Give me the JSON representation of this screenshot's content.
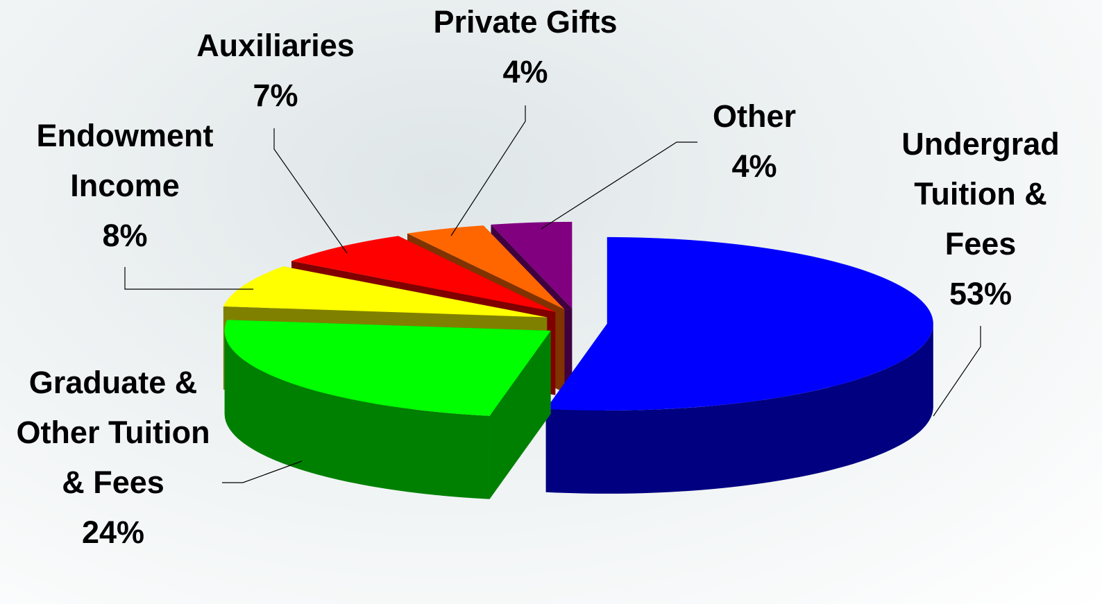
{
  "chart_data": {
    "type": "pie3d",
    "categories": [
      "Undergrad Tuition & Fees",
      "Graduate & Other Tuition & Fees",
      "Endowment Income",
      "Auxiliaries",
      "Private Gifts",
      "Other"
    ],
    "values": [
      53,
      24,
      8,
      7,
      4,
      4
    ],
    "value_labels": [
      "53%",
      "24%",
      "8%",
      "7%",
      "4%",
      "4%"
    ],
    "colors": [
      "#0000ff",
      "#00ff00",
      "#ffff00",
      "#ff0000",
      "#ff6600",
      "#800080"
    ],
    "side_colors": [
      "#000080",
      "#008000",
      "#808000",
      "#800000",
      "#803300",
      "#400040"
    ]
  }
}
